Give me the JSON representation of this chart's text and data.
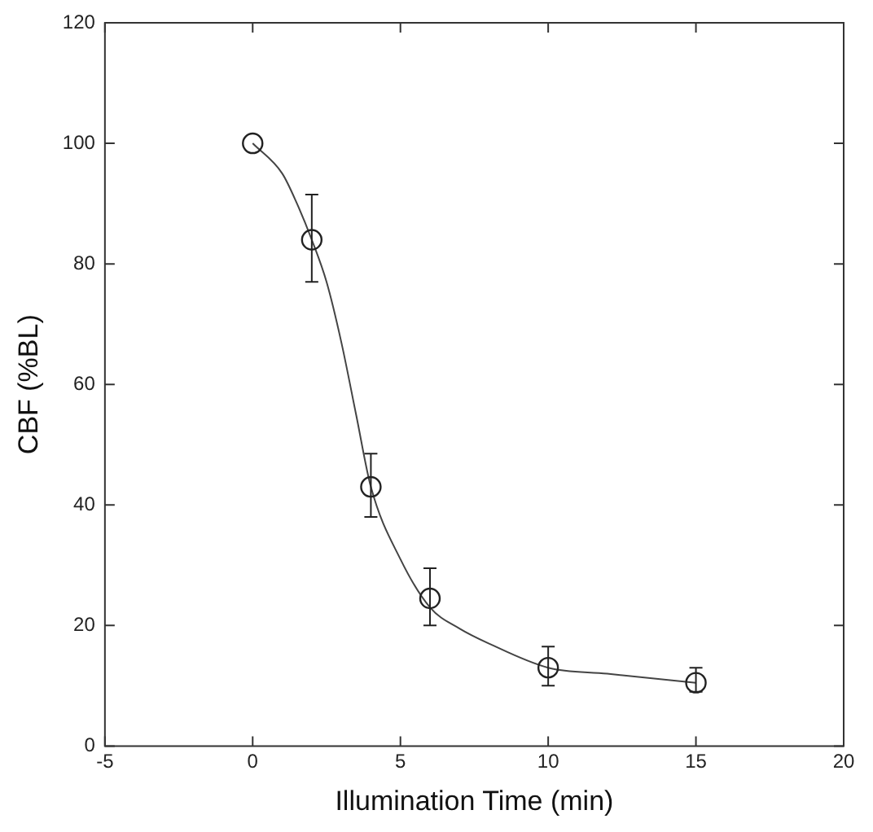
{
  "chart_data": {
    "type": "scatter",
    "xlabel": "Illumination Time (min)",
    "ylabel": "CBF (%BL)",
    "xlim": [
      -5,
      20
    ],
    "xticks": [
      -5,
      0,
      5,
      10,
      15,
      20
    ],
    "ylim": [
      0,
      120
    ],
    "yticks": [
      0,
      20,
      40,
      60,
      80,
      100,
      120
    ],
    "grid": false,
    "legend": false,
    "marker": "circle",
    "series": [
      {
        "color": "#222222",
        "x": [
          0,
          2,
          4,
          6,
          10,
          15
        ],
        "values": [
          100,
          84,
          43,
          24.5,
          13,
          10.5
        ],
        "errors": [
          null,
          [
            77,
            91.5
          ],
          [
            38,
            48.5
          ],
          [
            20,
            29.5
          ],
          [
            10,
            16.5
          ],
          [
            9,
            13
          ]
        ]
      },
      {
        "type": "line",
        "color": "#444444",
        "marker": "none",
        "x": [
          0,
          1,
          1.5,
          2,
          2.5,
          3,
          3.5,
          4,
          5,
          6,
          7,
          8,
          10,
          12,
          15
        ],
        "values": [
          100,
          95,
          90,
          84,
          77,
          67,
          55,
          43,
          31,
          23,
          19.5,
          17,
          13,
          12,
          10.5
        ]
      }
    ]
  }
}
